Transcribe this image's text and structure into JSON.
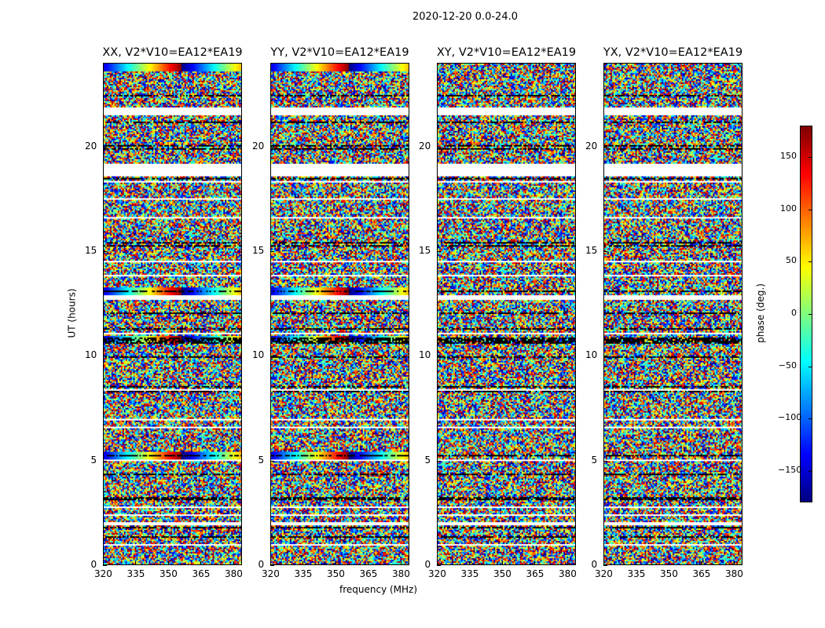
{
  "chart_data": {
    "type": "heatmap",
    "suptitle": "2020-12-20 0.0-24.0",
    "xlabel": "frequency (MHz)",
    "ylabel": "UT (hours)",
    "xlim": [
      320,
      384
    ],
    "ylim": [
      0,
      24
    ],
    "xticks": [
      "320",
      "335",
      "350",
      "365",
      "380"
    ],
    "yticks": [
      "0",
      "5",
      "10",
      "15",
      "20"
    ],
    "panels": [
      {
        "title": "XX, V2*V10=EA12*EA19",
        "smooth_rows_hours": [
          23.8,
          13.1,
          10.8,
          5.2
        ]
      },
      {
        "title": "YY, V2*V10=EA12*EA19",
        "smooth_rows_hours": [
          23.8,
          13.1,
          10.8,
          5.2
        ]
      },
      {
        "title": "XY, V2*V10=EA12*EA19",
        "smooth_rows_hours": []
      },
      {
        "title": "YX, V2*V10=EA12*EA19",
        "smooth_rows_hours": []
      }
    ],
    "flagged_gaps_hours": [
      [
        18.6,
        19.1
      ],
      [
        21.5,
        21.9
      ],
      [
        12.7,
        12.9
      ],
      [
        1.9,
        2.0
      ]
    ],
    "colorbar": {
      "label": "phase (deg.)",
      "range": [
        -180,
        180
      ],
      "ticks": [
        "150",
        "100",
        "50",
        "0",
        "−50",
        "−100",
        "−150"
      ],
      "tick_values": [
        150,
        100,
        50,
        0,
        -50,
        -100,
        -150
      ],
      "colormap": "jet"
    }
  }
}
